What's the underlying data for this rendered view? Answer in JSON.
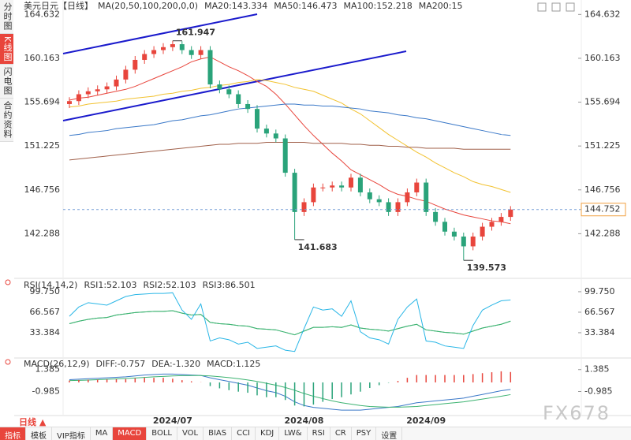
{
  "chart_data": [
    {
      "type": "candlestick",
      "title": "美元日元【日线】",
      "legend_title": "MA(20,50,100,200,0,0)",
      "categories": [
        null,
        null,
        null,
        null,
        null,
        null,
        null,
        null,
        null,
        null,
        null,
        "2024/07",
        null,
        null,
        null,
        null,
        null,
        null,
        null,
        null,
        null,
        null,
        null,
        null,
        null,
        "2024/08",
        null,
        null,
        null,
        null,
        null,
        null,
        null,
        null,
        null,
        null,
        null,
        null,
        "2024/09",
        null,
        null,
        null,
        null,
        null,
        null,
        null,
        null,
        null
      ],
      "open": [
        155.5,
        155.8,
        156.5,
        156.8,
        157.0,
        157.3,
        158.0,
        159.0,
        160.0,
        160.6,
        161.0,
        161.3,
        161.6,
        161.0,
        160.5,
        161.0,
        157.5,
        157.0,
        156.5,
        155.5,
        155.0,
        153.0,
        152.5,
        152.0,
        148.5,
        144.5,
        145.5,
        147.0,
        147.0,
        147.2,
        147.0,
        148.0,
        146.5,
        145.8,
        145.5,
        144.5,
        145.5,
        146.5,
        147.5,
        144.5,
        143.5,
        142.5,
        142.0,
        141.0,
        142.0,
        143.0,
        143.5,
        144.0
      ],
      "high": [
        156.2,
        156.9,
        157.2,
        157.4,
        157.7,
        158.4,
        159.4,
        160.4,
        161.0,
        161.4,
        161.7,
        161.947,
        161.9,
        161.4,
        161.4,
        161.4,
        157.9,
        157.4,
        156.9,
        155.9,
        155.4,
        153.4,
        152.9,
        152.4,
        148.9,
        145.9,
        147.4,
        147.4,
        147.6,
        147.6,
        148.4,
        148.4,
        146.9,
        146.2,
        145.9,
        145.9,
        146.9,
        147.9,
        147.9,
        144.9,
        143.9,
        142.9,
        142.4,
        142.4,
        143.4,
        143.9,
        144.4,
        145.1
      ],
      "low": [
        155.1,
        155.4,
        156.1,
        156.4,
        156.6,
        156.9,
        157.6,
        158.6,
        159.6,
        160.2,
        160.6,
        160.9,
        160.6,
        160.1,
        160.1,
        157.1,
        156.6,
        156.1,
        155.1,
        154.6,
        152.6,
        152.1,
        151.6,
        148.1,
        141.683,
        144.1,
        145.1,
        146.6,
        146.6,
        146.6,
        146.6,
        146.1,
        145.4,
        145.1,
        144.1,
        144.1,
        145.1,
        146.1,
        144.1,
        143.1,
        142.1,
        141.6,
        139.573,
        140.6,
        141.6,
        142.6,
        143.1,
        143.6
      ],
      "close": [
        155.8,
        156.5,
        156.8,
        157.0,
        157.3,
        158.0,
        159.0,
        160.0,
        160.6,
        161.0,
        161.3,
        161.6,
        161.0,
        160.5,
        161.0,
        157.5,
        157.0,
        156.5,
        155.5,
        155.0,
        153.0,
        152.5,
        152.0,
        148.5,
        144.5,
        145.5,
        147.0,
        147.0,
        147.2,
        147.0,
        148.0,
        146.5,
        145.8,
        145.5,
        144.5,
        145.5,
        146.5,
        147.5,
        144.5,
        143.5,
        142.5,
        142.0,
        141.0,
        142.0,
        143.0,
        143.5,
        144.0,
        144.752
      ],
      "up_color": "#e8453c",
      "down_color": "#2aa37a",
      "series": [
        {
          "name": "MA20:143.334",
          "color": "#e8453c",
          "values": [
            155.9,
            156.1,
            156.2,
            156.4,
            156.6,
            156.8,
            157.0,
            157.3,
            157.7,
            158.1,
            158.5,
            158.9,
            159.3,
            159.8,
            160.1,
            160.3,
            159.8,
            159.3,
            158.9,
            158.4,
            157.8,
            157.3,
            156.5,
            155.5,
            154.4,
            153.3,
            152.3,
            151.4,
            150.5,
            149.7,
            148.8,
            148.3,
            147.8,
            147.3,
            146.7,
            146.3,
            146.1,
            145.8,
            145.6,
            145.2,
            144.8,
            144.5,
            144.2,
            144.0,
            143.8,
            143.6,
            143.5,
            143.3
          ]
        },
        {
          "name": "MA50:146.473",
          "color": "#f2c230",
          "values": [
            155.2,
            155.3,
            155.5,
            155.6,
            155.7,
            155.8,
            156.0,
            156.1,
            156.2,
            156.3,
            156.5,
            156.6,
            156.8,
            156.9,
            157.1,
            157.2,
            157.4,
            157.5,
            157.7,
            157.8,
            158.0,
            157.9,
            157.7,
            157.5,
            157.2,
            157.0,
            156.8,
            156.4,
            156.0,
            155.6,
            155.0,
            154.5,
            153.8,
            153.1,
            152.4,
            151.8,
            151.2,
            150.6,
            150.1,
            149.5,
            149.0,
            148.5,
            148.1,
            147.6,
            147.3,
            147.1,
            146.8,
            146.5
          ]
        },
        {
          "name": "MA100:152.218",
          "color": "#3a78c8",
          "values": [
            152.3,
            152.4,
            152.6,
            152.7,
            152.8,
            153.0,
            153.1,
            153.2,
            153.3,
            153.4,
            153.6,
            153.8,
            153.9,
            154.1,
            154.3,
            154.4,
            154.6,
            154.8,
            155.0,
            155.1,
            155.2,
            155.3,
            155.4,
            155.5,
            155.5,
            155.4,
            155.4,
            155.3,
            155.3,
            155.2,
            155.1,
            155.0,
            154.8,
            154.7,
            154.6,
            154.4,
            154.3,
            154.1,
            154.0,
            153.8,
            153.6,
            153.4,
            153.2,
            153.0,
            152.8,
            152.6,
            152.4,
            152.3
          ]
        },
        {
          "name": "MA200:15",
          "color": "#a0604a",
          "values": [
            149.8,
            149.9,
            150.0,
            150.1,
            150.2,
            150.3,
            150.4,
            150.5,
            150.6,
            150.7,
            150.8,
            150.9,
            151.0,
            151.1,
            151.2,
            151.3,
            151.4,
            151.4,
            151.5,
            151.5,
            151.5,
            151.6,
            151.6,
            151.6,
            151.6,
            151.6,
            151.5,
            151.5,
            151.5,
            151.5,
            151.4,
            151.4,
            151.3,
            151.3,
            151.2,
            151.2,
            151.1,
            151.1,
            151.0,
            151.0,
            151.0,
            151.0,
            150.9,
            150.9,
            150.9,
            150.9,
            150.9,
            150.9
          ]
        }
      ],
      "ylim": [
        137.9,
        165.3
      ],
      "yticks": [
        164.632,
        160.163,
        155.694,
        151.225,
        146.756,
        142.288
      ]
    },
    {
      "type": "line",
      "title": "RSI(14,14,2)",
      "series": [
        {
          "name": "RSI1:52.103",
          "color": "#3cb371",
          "values": [
            48,
            52,
            55,
            57,
            58,
            62,
            64,
            66,
            67,
            68,
            68,
            69,
            65,
            62,
            63,
            50,
            48,
            47,
            45,
            44,
            40,
            39,
            38,
            34,
            30,
            36,
            42,
            42,
            43,
            42,
            46,
            41,
            39,
            38,
            36,
            40,
            44,
            47,
            38,
            36,
            34,
            33,
            31,
            36,
            41,
            44,
            47,
            52.103
          ]
        },
        {
          "name": "RSI2:52.103",
          "color": "#3cb371",
          "values": [
            48,
            52,
            55,
            57,
            58,
            62,
            64,
            66,
            67,
            68,
            68,
            69,
            65,
            62,
            63,
            50,
            48,
            47,
            45,
            44,
            40,
            39,
            38,
            34,
            30,
            36,
            42,
            42,
            43,
            42,
            46,
            41,
            39,
            38,
            36,
            40,
            44,
            47,
            38,
            36,
            34,
            33,
            31,
            36,
            41,
            44,
            47,
            52.103
          ]
        },
        {
          "name": "RSI3:86.501",
          "color": "#29b6e6",
          "values": [
            60,
            75,
            82,
            80,
            78,
            85,
            92,
            95,
            96,
            97,
            97,
            98,
            70,
            55,
            80,
            20,
            25,
            22,
            15,
            18,
            8,
            10,
            12,
            5,
            3,
            40,
            75,
            70,
            72,
            60,
            85,
            35,
            25,
            22,
            15,
            55,
            75,
            88,
            20,
            18,
            12,
            10,
            8,
            45,
            70,
            78,
            85,
            86.501
          ]
        }
      ],
      "ylim": [
        -5,
        115
      ],
      "yticks": [
        {
          "value": 99.75,
          "label": "99.750"
        },
        66.567,
        33.384
      ]
    },
    {
      "type": "macd",
      "title": "MACD(26,12,9)",
      "series": [
        {
          "name": "DIFF:-0.757",
          "color": "#3a78c8",
          "values": [
            0.3,
            0.35,
            0.4,
            0.45,
            0.5,
            0.55,
            0.6,
            0.7,
            0.8,
            0.85,
            0.9,
            0.9,
            0.85,
            0.8,
            0.75,
            0.5,
            0.3,
            0.1,
            -0.1,
            -0.3,
            -0.6,
            -0.9,
            -1.1,
            -1.5,
            -2.1,
            -2.5,
            -2.7,
            -2.8,
            -2.9,
            -3.0,
            -3.0,
            -3.0,
            -2.9,
            -2.8,
            -2.7,
            -2.6,
            -2.4,
            -2.2,
            -2.1,
            -2.0,
            -1.9,
            -1.8,
            -1.7,
            -1.5,
            -1.3,
            -1.1,
            -0.9,
            -0.757
          ]
        },
        {
          "name": "DEA:-1.320",
          "color": "#3cb371",
          "values": [
            0.2,
            0.22,
            0.25,
            0.3,
            0.34,
            0.38,
            0.42,
            0.48,
            0.54,
            0.6,
            0.65,
            0.7,
            0.73,
            0.74,
            0.74,
            0.7,
            0.62,
            0.52,
            0.4,
            0.26,
            0.1,
            -0.1,
            -0.3,
            -0.55,
            -0.85,
            -1.2,
            -1.5,
            -1.75,
            -2.0,
            -2.2,
            -2.35,
            -2.5,
            -2.6,
            -2.65,
            -2.68,
            -2.68,
            -2.65,
            -2.6,
            -2.5,
            -2.4,
            -2.3,
            -2.2,
            -2.1,
            -1.95,
            -1.8,
            -1.65,
            -1.5,
            -1.32
          ]
        },
        {
          "name": "MACD:1.125",
          "color": "#e8453c",
          "down_color": "#2aa37a",
          "bars": true,
          "values": [
            0.2,
            0.26,
            0.3,
            0.3,
            0.32,
            0.34,
            0.36,
            0.44,
            0.52,
            0.5,
            0.5,
            0.4,
            0.24,
            0.12,
            0.02,
            -0.4,
            -0.64,
            -0.84,
            -1.0,
            -1.12,
            -1.4,
            -1.6,
            -1.6,
            -1.9,
            -2.5,
            -2.6,
            -2.4,
            -2.1,
            -1.8,
            -1.6,
            -1.3,
            -1.0,
            -0.6,
            -0.3,
            -0.04,
            0.16,
            0.5,
            0.8,
            0.8,
            0.8,
            0.8,
            0.8,
            0.8,
            0.9,
            1.0,
            1.1,
            1.2,
            1.125
          ]
        }
      ],
      "ylim": [
        -3.5,
        2.3
      ],
      "yticks": [
        1.385,
        -0.985
      ]
    }
  ],
  "ui": {
    "sidebar": [
      "分时图",
      "K线图",
      "闪电图",
      "合约资料"
    ],
    "period": "日线 ▲",
    "toolbar": [
      "指标",
      "模板",
      "VIP指标",
      "MA",
      "MACD",
      "BOLL",
      "VOL",
      "BIAS",
      "CCI",
      "KDJ",
      "LW&",
      "RSI",
      "CR",
      "PSY",
      "设置"
    ],
    "watermark": "FX678"
  }
}
